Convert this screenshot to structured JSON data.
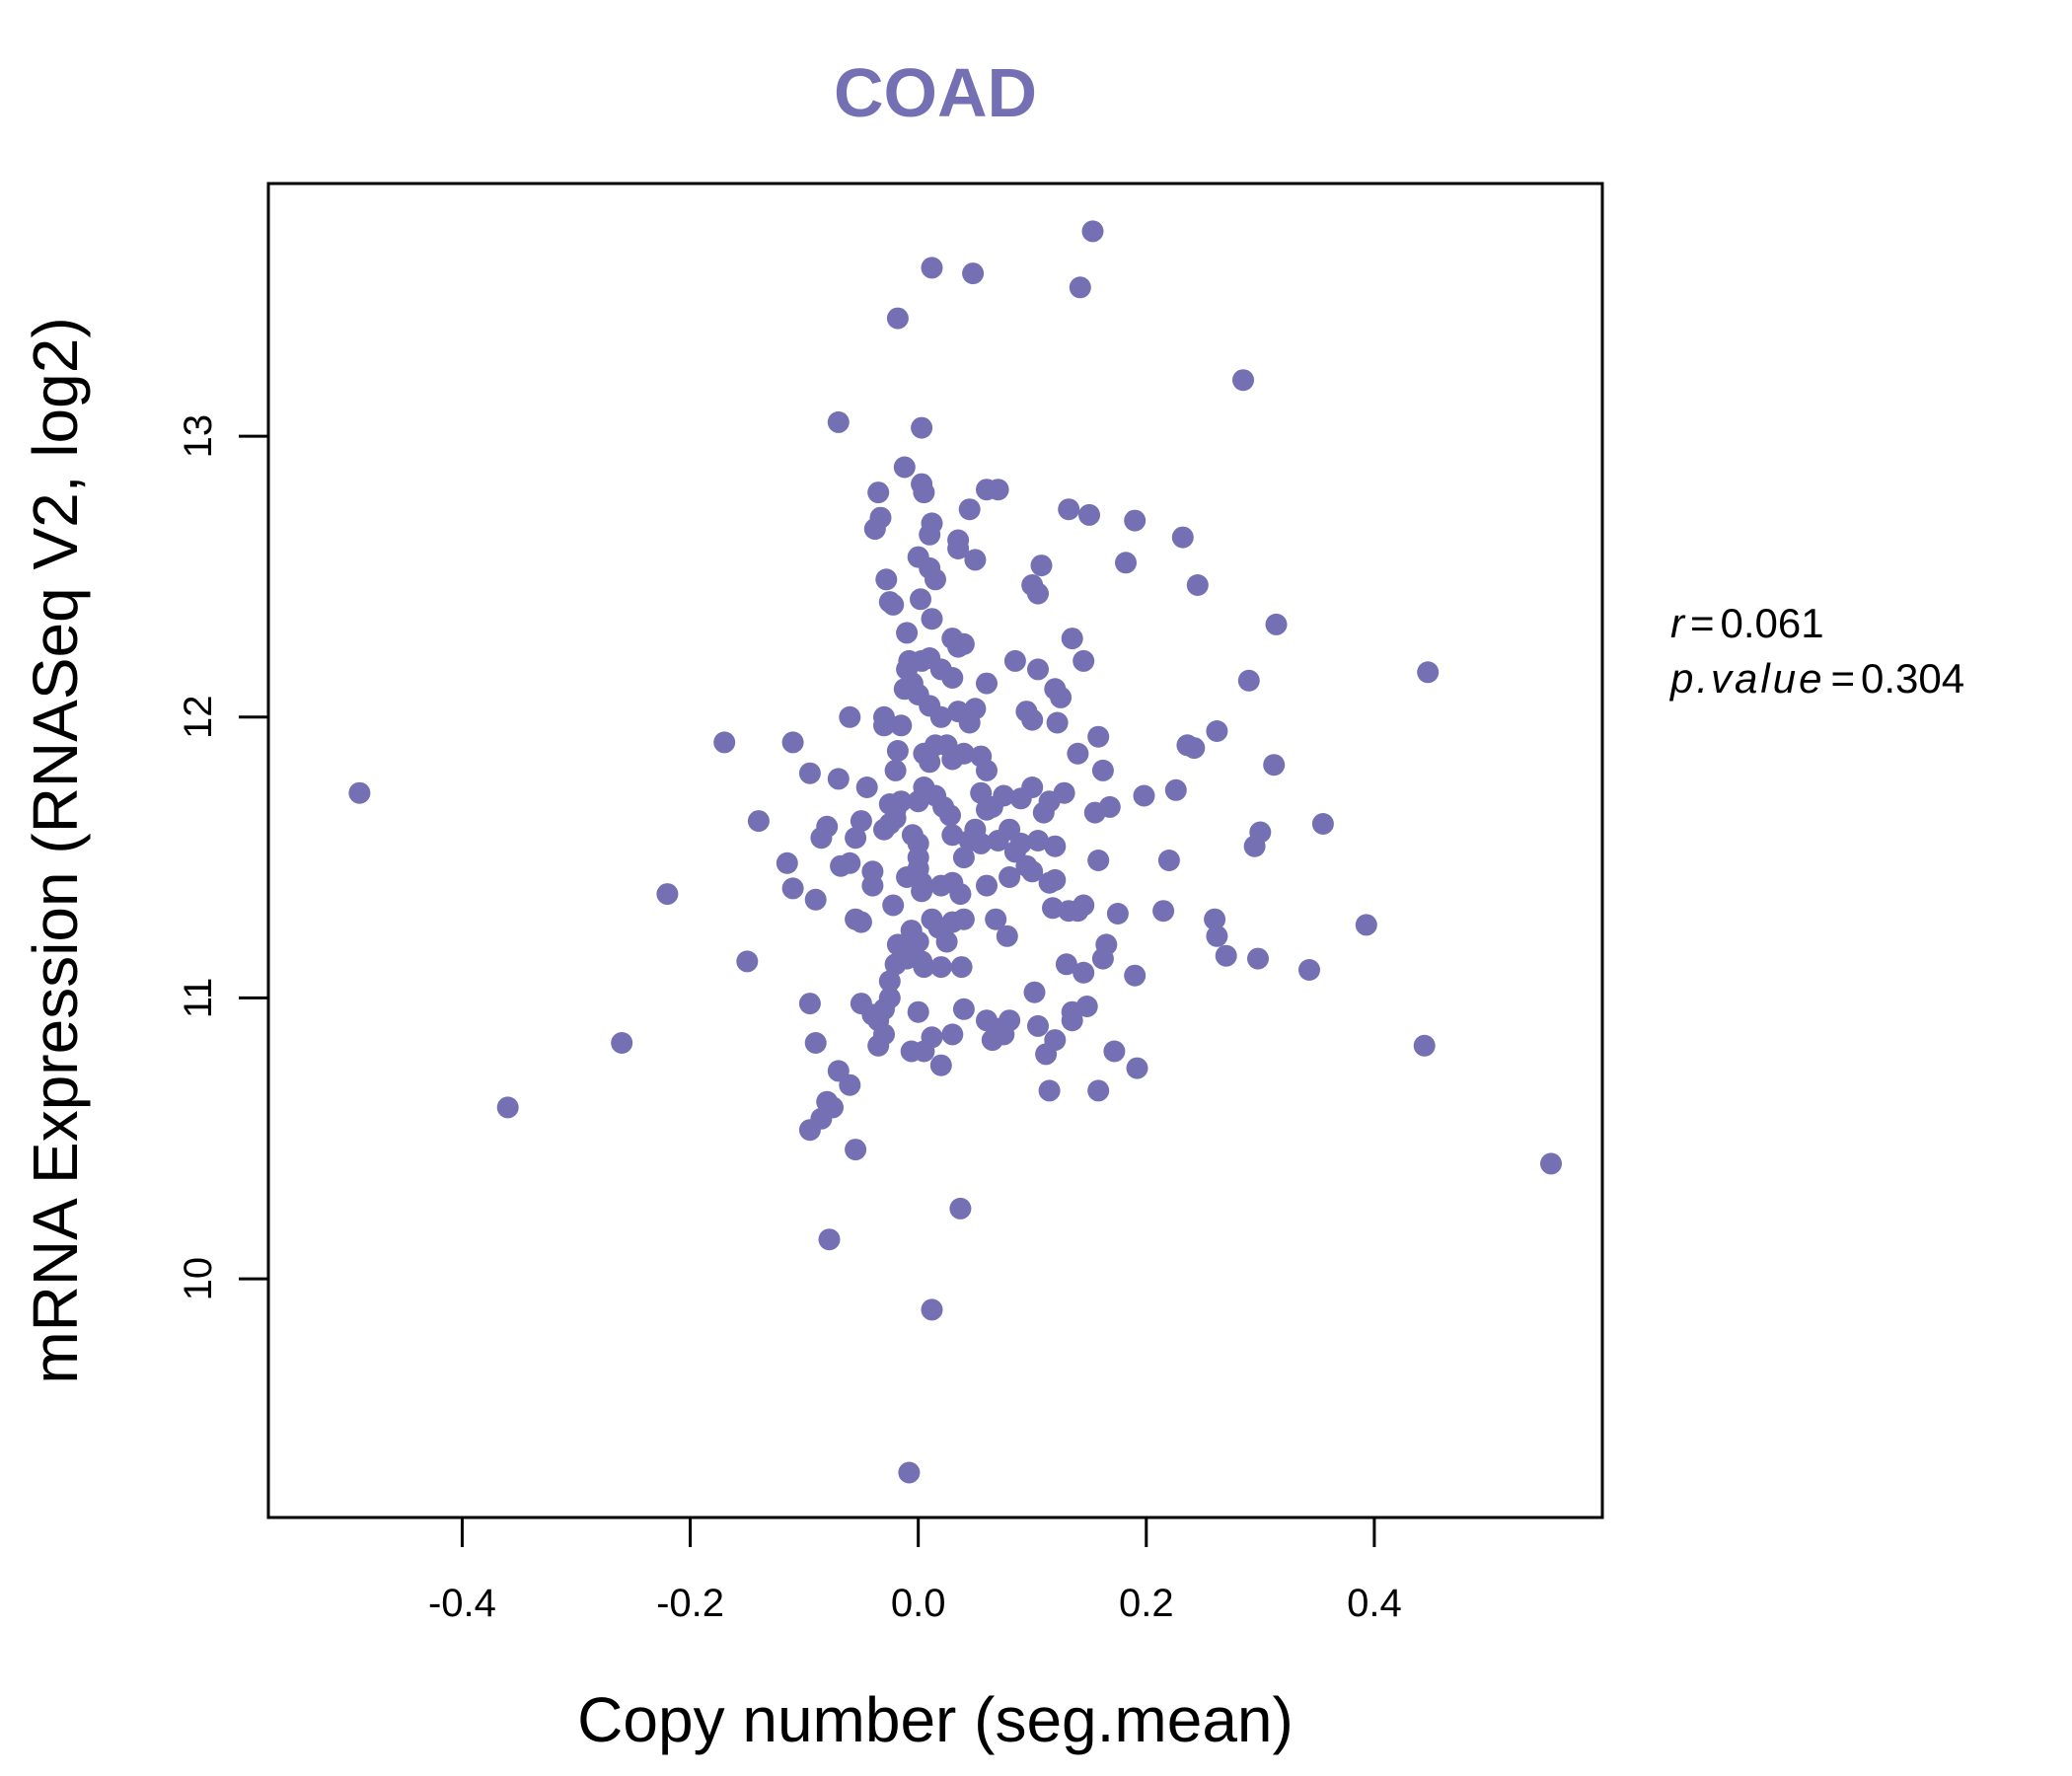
{
  "chart_data": {
    "type": "scatter",
    "title": "COAD",
    "xlabel": "Copy number (seg.mean)",
    "ylabel": "mRNA Expression (RNASeq V2, log2)",
    "xlim": [
      -0.57,
      0.6
    ],
    "ylim": [
      9.15,
      13.9
    ],
    "x_ticks": [
      -0.4,
      -0.2,
      0.0,
      0.2,
      0.4
    ],
    "x_tick_labels": [
      "-0.4",
      "-0.2",
      "0.0",
      "0.2",
      "0.4"
    ],
    "y_ticks": [
      10,
      11,
      12,
      13
    ],
    "y_tick_labels": [
      "10",
      "11",
      "12",
      "13"
    ],
    "grid": false,
    "point_color": "#7570b3",
    "annotations": {
      "r_label": "r",
      "r_value": "0.061",
      "p_label": "p.value",
      "p_value": "0.304",
      "equals": "="
    },
    "points": [
      [
        -0.49,
        11.73
      ],
      [
        -0.36,
        10.61
      ],
      [
        -0.26,
        10.84
      ],
      [
        -0.22,
        11.37
      ],
      [
        -0.17,
        11.91
      ],
      [
        -0.15,
        11.13
      ],
      [
        -0.14,
        11.63
      ],
      [
        -0.11,
        11.91
      ],
      [
        -0.115,
        11.48
      ],
      [
        -0.11,
        11.39
      ],
      [
        -0.095,
        11.8
      ],
      [
        -0.09,
        11.35
      ],
      [
        -0.085,
        11.57
      ],
      [
        -0.08,
        11.61
      ],
      [
        -0.095,
        10.98
      ],
      [
        -0.09,
        10.84
      ],
      [
        -0.095,
        10.53
      ],
      [
        -0.085,
        10.57
      ],
      [
        -0.08,
        10.63
      ],
      [
        -0.075,
        10.61
      ],
      [
        -0.07,
        10.74
      ],
      [
        -0.06,
        10.69
      ],
      [
        -0.055,
        10.46
      ],
      [
        -0.078,
        10.14
      ],
      [
        -0.07,
        13.05
      ],
      [
        -0.07,
        11.78
      ],
      [
        -0.068,
        11.47
      ],
      [
        -0.06,
        11.48
      ],
      [
        -0.06,
        12.0
      ],
      [
        -0.055,
        11.57
      ],
      [
        -0.05,
        11.63
      ],
      [
        -0.05,
        11.27
      ],
      [
        -0.055,
        11.28
      ],
      [
        -0.045,
        11.75
      ],
      [
        -0.04,
        11.45
      ],
      [
        -0.04,
        11.4
      ],
      [
        -0.05,
        10.98
      ],
      [
        -0.04,
        10.94
      ],
      [
        -0.035,
        10.92
      ],
      [
        -0.035,
        10.83
      ],
      [
        -0.03,
        10.87
      ],
      [
        -0.03,
        10.96
      ],
      [
        -0.025,
        11.0
      ],
      [
        -0.025,
        11.06
      ],
      [
        -0.02,
        11.12
      ],
      [
        -0.035,
        12.8
      ],
      [
        -0.038,
        12.67
      ],
      [
        -0.033,
        12.71
      ],
      [
        -0.028,
        12.49
      ],
      [
        -0.025,
        12.41
      ],
      [
        -0.022,
        12.4
      ],
      [
        -0.03,
        12.0
      ],
      [
        -0.03,
        11.97
      ],
      [
        -0.025,
        11.69
      ],
      [
        -0.02,
        11.64
      ],
      [
        -0.03,
        11.6
      ],
      [
        -0.025,
        11.62
      ],
      [
        -0.02,
        11.67
      ],
      [
        -0.015,
        11.7
      ],
      [
        -0.02,
        11.81
      ],
      [
        -0.018,
        11.88
      ],
      [
        -0.015,
        11.97
      ],
      [
        -0.01,
        12.17
      ],
      [
        -0.012,
        12.1
      ],
      [
        -0.008,
        12.2
      ],
      [
        -0.005,
        12.12
      ],
      [
        -0.01,
        12.3
      ],
      [
        -0.018,
        13.42
      ],
      [
        -0.012,
        12.89
      ],
      [
        -0.022,
        11.33
      ],
      [
        -0.018,
        11.19
      ],
      [
        -0.014,
        11.17
      ],
      [
        -0.01,
        11.14
      ],
      [
        -0.01,
        11.43
      ],
      [
        -0.005,
        11.58
      ],
      [
        0.0,
        11.55
      ],
      [
        0.0,
        11.5
      ],
      [
        0.0,
        11.46
      ],
      [
        0.003,
        11.38
      ],
      [
        0.003,
        11.41
      ],
      [
        -0.006,
        11.24
      ],
      [
        0.0,
        11.2
      ],
      [
        0.003,
        11.13
      ],
      [
        0.005,
        11.11
      ],
      [
        0.0,
        10.95
      ],
      [
        -0.006,
        10.81
      ],
      [
        0.005,
        10.81
      ],
      [
        0.012,
        10.86
      ],
      [
        0.02,
        10.76
      ],
      [
        0.03,
        10.87
      ],
      [
        -0.008,
        9.31
      ],
      [
        0.012,
        9.89
      ],
      [
        0.037,
        10.25
      ],
      [
        0.04,
        10.96
      ],
      [
        0.038,
        11.11
      ],
      [
        0.02,
        11.11
      ],
      [
        0.025,
        11.2
      ],
      [
        0.018,
        11.25
      ],
      [
        0.012,
        11.28
      ],
      [
        0.03,
        11.27
      ],
      [
        0.04,
        11.28
      ],
      [
        0.02,
        11.4
      ],
      [
        0.03,
        11.41
      ],
      [
        0.037,
        11.37
      ],
      [
        0.04,
        11.5
      ],
      [
        0.03,
        11.58
      ],
      [
        0.028,
        11.65
      ],
      [
        0.022,
        11.68
      ],
      [
        0.015,
        11.72
      ],
      [
        0.005,
        11.75
      ],
      [
        0.0,
        11.7
      ],
      [
        0.01,
        11.84
      ],
      [
        0.005,
        11.87
      ],
      [
        0.015,
        11.9
      ],
      [
        0.025,
        11.9
      ],
      [
        0.03,
        11.85
      ],
      [
        0.04,
        11.87
      ],
      [
        0.045,
        11.98
      ],
      [
        0.05,
        12.03
      ],
      [
        0.035,
        12.02
      ],
      [
        0.02,
        12.0
      ],
      [
        0.01,
        12.04
      ],
      [
        0.0,
        12.08
      ],
      [
        0.003,
        12.2
      ],
      [
        0.01,
        12.21
      ],
      [
        0.02,
        12.17
      ],
      [
        0.03,
        12.14
      ],
      [
        0.035,
        12.25
      ],
      [
        0.03,
        12.28
      ],
      [
        0.04,
        12.26
      ],
      [
        0.012,
        12.35
      ],
      [
        0.002,
        12.42
      ],
      [
        0.015,
        12.49
      ],
      [
        0.01,
        12.53
      ],
      [
        0.0,
        12.57
      ],
      [
        0.01,
        12.65
      ],
      [
        0.012,
        12.69
      ],
      [
        0.035,
        12.6
      ],
      [
        0.035,
        12.63
      ],
      [
        0.05,
        12.56
      ],
      [
        0.045,
        12.74
      ],
      [
        0.005,
        12.8
      ],
      [
        0.003,
        12.83
      ],
      [
        0.003,
        13.03
      ],
      [
        0.012,
        13.6
      ],
      [
        0.048,
        13.58
      ],
      [
        0.06,
        12.81
      ],
      [
        0.07,
        12.81
      ],
      [
        0.055,
        11.86
      ],
      [
        0.06,
        11.81
      ],
      [
        0.055,
        11.73
      ],
      [
        0.06,
        11.67
      ],
      [
        0.065,
        11.68
      ],
      [
        0.05,
        11.6
      ],
      [
        0.055,
        11.55
      ],
      [
        0.06,
        11.4
      ],
      [
        0.045,
        11.56
      ],
      [
        0.068,
        11.28
      ],
      [
        0.078,
        11.22
      ],
      [
        0.07,
        11.56
      ],
      [
        0.075,
        11.72
      ],
      [
        0.08,
        11.6
      ],
      [
        0.08,
        11.43
      ],
      [
        0.085,
        11.52
      ],
      [
        0.09,
        11.55
      ],
      [
        0.095,
        11.47
      ],
      [
        0.1,
        11.45
      ],
      [
        0.09,
        11.71
      ],
      [
        0.1,
        11.75
      ],
      [
        0.085,
        12.2
      ],
      [
        0.06,
        12.12
      ],
      [
        0.095,
        12.02
      ],
      [
        0.1,
        11.99
      ],
      [
        0.105,
        12.17
      ],
      [
        0.1,
        12.47
      ],
      [
        0.105,
        12.44
      ],
      [
        0.108,
        12.54
      ],
      [
        0.06,
        10.92
      ],
      [
        0.07,
        10.89
      ],
      [
        0.065,
        10.85
      ],
      [
        0.075,
        10.87
      ],
      [
        0.08,
        10.92
      ],
      [
        0.105,
        10.9
      ],
      [
        0.102,
        11.02
      ],
      [
        0.105,
        11.56
      ],
      [
        0.11,
        11.66
      ],
      [
        0.115,
        11.7
      ],
      [
        0.115,
        11.41
      ],
      [
        0.12,
        11.42
      ],
      [
        0.12,
        11.54
      ],
      [
        0.118,
        11.32
      ],
      [
        0.112,
        10.8
      ],
      [
        0.115,
        10.67
      ],
      [
        0.12,
        10.85
      ],
      [
        0.13,
        11.12
      ],
      [
        0.135,
        10.95
      ],
      [
        0.135,
        10.92
      ],
      [
        0.148,
        10.97
      ],
      [
        0.145,
        11.09
      ],
      [
        0.14,
        11.31
      ],
      [
        0.132,
        11.31
      ],
      [
        0.145,
        11.33
      ],
      [
        0.128,
        11.73
      ],
      [
        0.122,
        11.98
      ],
      [
        0.12,
        12.1
      ],
      [
        0.125,
        12.07
      ],
      [
        0.135,
        12.28
      ],
      [
        0.145,
        12.2
      ],
      [
        0.132,
        12.74
      ],
      [
        0.15,
        12.72
      ],
      [
        0.142,
        13.53
      ],
      [
        0.153,
        13.73
      ],
      [
        0.14,
        11.87
      ],
      [
        0.158,
        11.93
      ],
      [
        0.162,
        11.81
      ],
      [
        0.155,
        11.66
      ],
      [
        0.168,
        11.68
      ],
      [
        0.158,
        11.49
      ],
      [
        0.165,
        11.19
      ],
      [
        0.162,
        11.14
      ],
      [
        0.158,
        10.67
      ],
      [
        0.172,
        10.81
      ],
      [
        0.175,
        11.3
      ],
      [
        0.182,
        12.55
      ],
      [
        0.19,
        12.7
      ],
      [
        0.198,
        11.72
      ],
      [
        0.19,
        11.08
      ],
      [
        0.192,
        10.75
      ],
      [
        0.215,
        11.31
      ],
      [
        0.22,
        11.49
      ],
      [
        0.226,
        11.74
      ],
      [
        0.232,
        12.64
      ],
      [
        0.236,
        11.9
      ],
      [
        0.242,
        11.89
      ],
      [
        0.245,
        12.47
      ],
      [
        0.26,
        11.28
      ],
      [
        0.262,
        11.22
      ],
      [
        0.262,
        11.95
      ],
      [
        0.27,
        11.15
      ],
      [
        0.285,
        13.2
      ],
      [
        0.29,
        12.13
      ],
      [
        0.295,
        11.54
      ],
      [
        0.3,
        11.59
      ],
      [
        0.298,
        11.14
      ],
      [
        0.312,
        11.83
      ],
      [
        0.314,
        12.33
      ],
      [
        0.343,
        11.1
      ],
      [
        0.355,
        11.62
      ],
      [
        0.393,
        11.26
      ],
      [
        0.444,
        10.83
      ],
      [
        0.447,
        12.16
      ],
      [
        0.555,
        10.41
      ]
    ]
  }
}
